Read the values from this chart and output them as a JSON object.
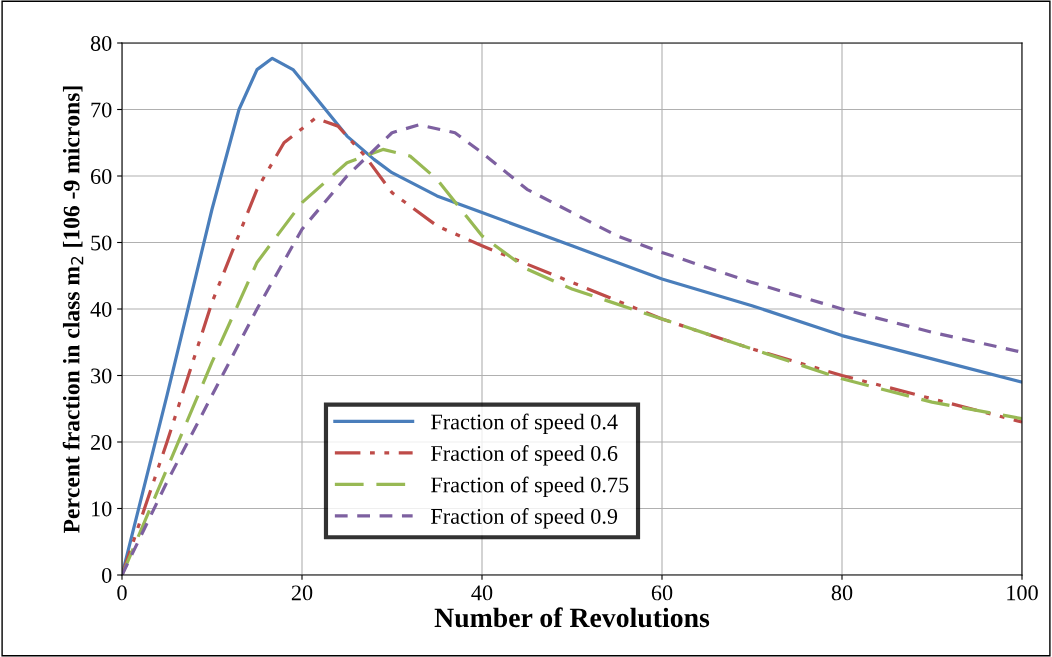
{
  "chart_data": {
    "type": "line",
    "xlabel": "Number of Revolutions",
    "ylabel": "Percent fraction in class m$_{2}$ [106 -9 microns]",
    "xlim": [
      0,
      100
    ],
    "xticks": [
      0,
      20,
      40,
      60,
      80,
      100
    ],
    "ylim": [
      0,
      80
    ],
    "yticks": [
      0,
      10,
      20,
      30,
      40,
      50,
      60,
      70,
      80
    ],
    "grid": true,
    "legend": "bottom",
    "marker": "none",
    "series": [
      {
        "name": "Fraction of speed 0.4",
        "color": "#4a7ebb",
        "line_style": "solid",
        "x": [
          0,
          5,
          10,
          13,
          15,
          16.7,
          19,
          22,
          25,
          28,
          30,
          35,
          40,
          50,
          60,
          70,
          80,
          90,
          100
        ],
        "values": [
          0,
          27,
          55,
          70,
          76,
          77.7,
          76,
          71,
          66,
          62.5,
          60.5,
          57,
          54.5,
          49.5,
          44.5,
          40.5,
          36,
          32.5,
          29
        ]
      },
      {
        "name": "Fraction of speed 0.6",
        "color": "#be4b48",
        "line_style": "dashdot",
        "x": [
          0,
          5,
          10,
          15,
          18,
          21.5,
          24,
          27,
          30,
          35,
          40,
          50,
          60,
          70,
          80,
          90,
          100
        ],
        "values": [
          0,
          20,
          41,
          58,
          65,
          68.7,
          67.5,
          63,
          57.5,
          52.5,
          49.5,
          44,
          38.5,
          34,
          30,
          26.5,
          23
        ]
      },
      {
        "name": "Fraction of speed 0.75",
        "color": "#98b954",
        "line_style": "dashed",
        "x": [
          0,
          5,
          10,
          15,
          20,
          25,
          29,
          32,
          35,
          40,
          45,
          50,
          60,
          70,
          80,
          90,
          100
        ],
        "values": [
          0,
          16,
          32,
          47,
          56,
          62,
          64,
          63,
          59.5,
          51,
          46,
          43,
          38.5,
          34,
          29.5,
          26,
          23.5
        ]
      },
      {
        "name": "Fraction of speed 0.9",
        "color": "#7d60a0",
        "line_style": "dotted",
        "x": [
          0,
          5,
          10,
          15,
          20,
          25,
          30,
          33,
          37,
          40,
          45,
          50,
          55,
          60,
          70,
          80,
          90,
          100
        ],
        "values": [
          0,
          14,
          27,
          40,
          52,
          60,
          66.5,
          67.7,
          66.5,
          63.5,
          58,
          54.5,
          51,
          48.5,
          44,
          40,
          36.5,
          33.5
        ]
      }
    ]
  }
}
